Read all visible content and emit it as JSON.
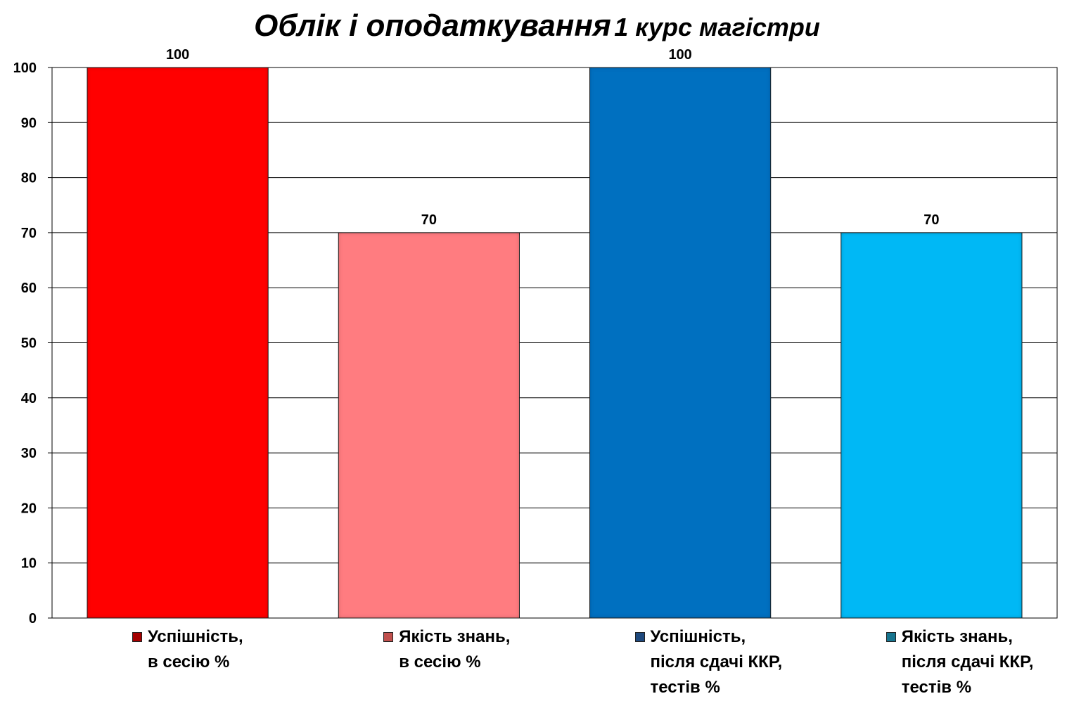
{
  "chart_data": {
    "type": "bar",
    "title": "Облік і оподаткування",
    "subtitle": "1 курс магістри",
    "categories": [
      "Успішність,\nв сесію %",
      "Якість знань,\nв сесію %",
      "Успішність,\nпісля сдачі ККР,\nтестів %",
      "Якість знань,\nпісля сдачі ККР,\nтестів %"
    ],
    "values": [
      100,
      70,
      100,
      70
    ],
    "colors": [
      "#ff0000",
      "#ff7c80",
      "#0070c0",
      "#00b8f5"
    ],
    "legend_colors": [
      "#a40000",
      "#c0504d",
      "#1f497d",
      "#17758f"
    ],
    "ylim": [
      0,
      100
    ],
    "yticks": [
      0,
      10,
      20,
      30,
      40,
      50,
      60,
      70,
      80,
      90,
      100
    ],
    "grid": true,
    "legend_position": "bottom",
    "xlabel": "",
    "ylabel": ""
  }
}
